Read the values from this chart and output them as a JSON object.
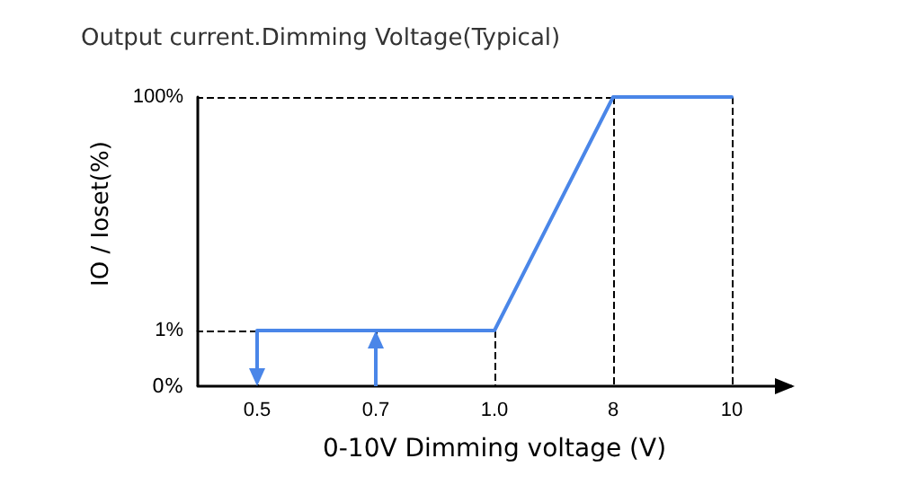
{
  "chart_data": {
    "type": "line",
    "title": "Output current.Dimming Voltage(Typical)",
    "xlabel": "0-10V Dimming voltage (V)",
    "ylabel": "IO / Ioset(%)",
    "categories": [
      "0.5",
      "0.7",
      "1.0",
      "8",
      "10"
    ],
    "ylim": [
      1,
      100
    ],
    "yticks": [
      {
        "value": 1,
        "label": "1%"
      },
      {
        "value": 100,
        "label": "100%"
      }
    ],
    "annotations": [
      "0%"
    ],
    "marker": "none",
    "line_style": "solid",
    "series": [
      {
        "color": "#4a86e8",
        "values": [
          1,
          1,
          1,
          100,
          100
        ]
      }
    ]
  }
}
